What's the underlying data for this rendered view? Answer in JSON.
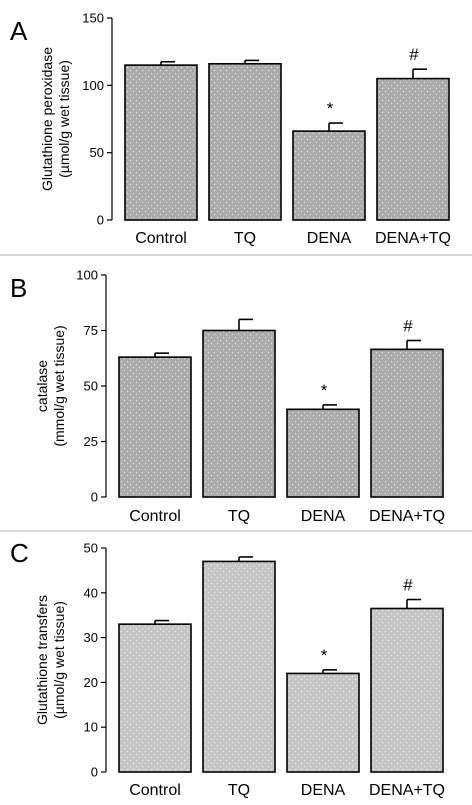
{
  "chart_data": [
    {
      "type": "bar",
      "panel": "A",
      "ylabel": [
        "Glutathione peroxidase",
        "(µmol/g wet tissue)"
      ],
      "categories": [
        "Control",
        "TQ",
        "DENA",
        "DENA+TQ"
      ],
      "values": [
        115,
        116,
        66,
        105
      ],
      "errors": [
        2.5,
        2.5,
        6,
        7
      ],
      "significance": [
        "",
        "",
        "*",
        "#"
      ],
      "ylim": [
        0,
        150
      ],
      "yticks": [
        "0",
        "50",
        "100",
        "150"
      ],
      "bar_color": "#a9a9a9"
    },
    {
      "type": "bar",
      "panel": "B",
      "ylabel": [
        "catalase",
        "(mmol/g wet tissue)"
      ],
      "categories": [
        "Control",
        "TQ",
        "DENA",
        "DENA+TQ"
      ],
      "values": [
        63,
        75,
        39.5,
        66.5
      ],
      "errors": [
        1.8,
        5,
        2,
        4
      ],
      "significance": [
        "",
        "",
        "*",
        "#"
      ],
      "ylim": [
        0,
        100
      ],
      "yticks": [
        "0",
        "25",
        "50",
        "75",
        "100"
      ],
      "bar_color": "#a9a9a9"
    },
    {
      "type": "bar",
      "panel": "C",
      "ylabel": [
        "Glutathione transfers",
        "(µmol/g wet tissue)"
      ],
      "categories": [
        "Control",
        "TQ",
        "DENA",
        "DENA+TQ"
      ],
      "values": [
        33,
        47,
        22,
        36.5
      ],
      "errors": [
        0.8,
        1,
        0.8,
        2
      ],
      "significance": [
        "",
        "",
        "*",
        "#"
      ],
      "ylim": [
        0,
        50
      ],
      "yticks": [
        "0",
        "10",
        "20",
        "30",
        "40",
        "50"
      ],
      "bar_color": "#c4c4c4"
    }
  ]
}
